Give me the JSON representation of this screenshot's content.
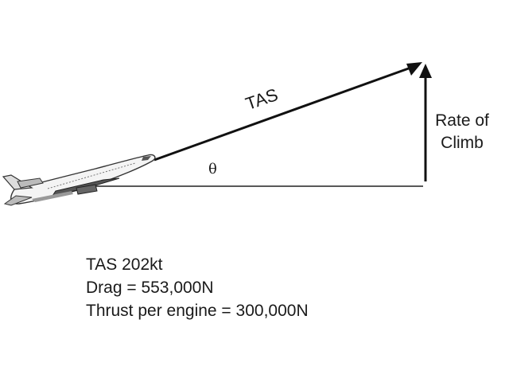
{
  "labels": {
    "velocity": "TAS",
    "angle": "θ",
    "rate_of_climb_line1": "Rate of",
    "rate_of_climb_line2": "Climb"
  },
  "info": {
    "tas": "TAS 202kt",
    "drag": "Drag = 553,000N",
    "thrust": "Thrust per engine = 300,000N"
  }
}
